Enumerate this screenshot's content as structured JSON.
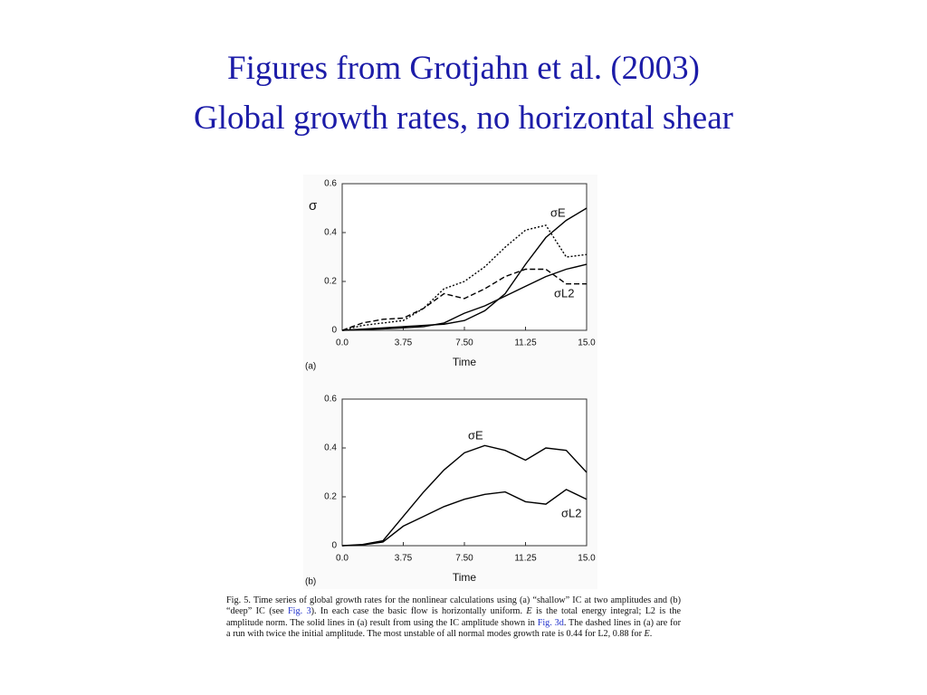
{
  "header": {
    "title": [
      "Figures from Grotjahn et al. (2003)",
      "Global growth rates, no horizontal shear"
    ]
  },
  "chart_data": [
    {
      "type": "line",
      "panel": "(a)",
      "ylabel": "σ",
      "xlabel": "Time",
      "x": [
        0,
        1.25,
        2.5,
        3.75,
        5,
        6.25,
        7.5,
        8.75,
        10,
        11.25,
        12.5,
        13.75,
        15
      ],
      "series": [
        {
          "name": "σE",
          "color": "#000000",
          "dash": "solid",
          "values": [
            0,
            0.005,
            0.01,
            0.015,
            0.02,
            0.025,
            0.04,
            0.08,
            0.15,
            0.27,
            0.38,
            0.45,
            0.5
          ]
        },
        {
          "name": "σL2",
          "color": "#000000",
          "dash": "solid",
          "values": [
            0,
            0.003,
            0.006,
            0.01,
            0.015,
            0.03,
            0.07,
            0.1,
            0.14,
            0.18,
            0.22,
            0.25,
            0.27
          ]
        },
        {
          "color": "#000000",
          "dash": "dotted",
          "values": [
            0,
            0.02,
            0.03,
            0.04,
            0.09,
            0.17,
            0.2,
            0.26,
            0.34,
            0.41,
            0.43,
            0.3,
            0.31
          ]
        },
        {
          "color": "#000000",
          "dash": "dashed",
          "values": [
            0,
            0.03,
            0.045,
            0.05,
            0.09,
            0.15,
            0.13,
            0.17,
            0.22,
            0.25,
            0.25,
            0.19,
            0.19
          ]
        }
      ],
      "xlim": [
        0,
        15
      ],
      "ylim": [
        0,
        0.6
      ],
      "xticks": [
        {
          "value": 0,
          "label": "0.0"
        },
        3.75,
        {
          "value": 7.5,
          "label": "7.50"
        },
        11.25,
        {
          "value": 15,
          "label": "15.0"
        }
      ],
      "yticks": [
        0,
        0.2,
        0.4,
        0.6
      ]
    },
    {
      "type": "line",
      "panel": "(b)",
      "xlabel": "Time",
      "x": [
        0,
        1.25,
        2.5,
        3.75,
        5,
        6.25,
        7.5,
        8.75,
        10,
        11.25,
        12.5,
        13.75,
        15
      ],
      "series": [
        {
          "name": "σE",
          "color": "#000000",
          "dash": "solid",
          "values": [
            0,
            0.005,
            0.02,
            0.12,
            0.22,
            0.31,
            0.38,
            0.41,
            0.39,
            0.35,
            0.4,
            0.39,
            0.3
          ]
        },
        {
          "name": "σL2",
          "color": "#000000",
          "dash": "solid",
          "values": [
            0,
            0.003,
            0.015,
            0.08,
            0.12,
            0.16,
            0.19,
            0.21,
            0.22,
            0.18,
            0.17,
            0.23,
            0.19
          ]
        }
      ],
      "xlim": [
        0,
        15
      ],
      "ylim": [
        0,
        0.6
      ],
      "xticks": [
        {
          "value": 0,
          "label": "0.0"
        },
        3.75,
        {
          "value": 7.5,
          "label": "7.50"
        },
        11.25,
        {
          "value": 15,
          "label": "15.0"
        }
      ],
      "yticks": [
        0,
        0.2,
        0.4,
        0.6
      ]
    }
  ],
  "caption": [
    "Fig. 5. Time series of global growth rates for the nonlinear calculations using (a) “shallow” IC at two amplitudes and (b) “deep” IC (see ",
    "Fig. 3",
    "). In each case the basic flow is horizontally uniform. ",
    "E",
    " is the total energy integral; L2 is the amplitude norm. The solid lines in (a) result from using the IC amplitude shown in ",
    "Fig. 3d",
    ". The dashed lines in (a) are for a run with twice the initial amplitude. The most unstable of all normal modes growth rate is 0.44 for L2, 0.88 for ",
    "E",
    "."
  ]
}
